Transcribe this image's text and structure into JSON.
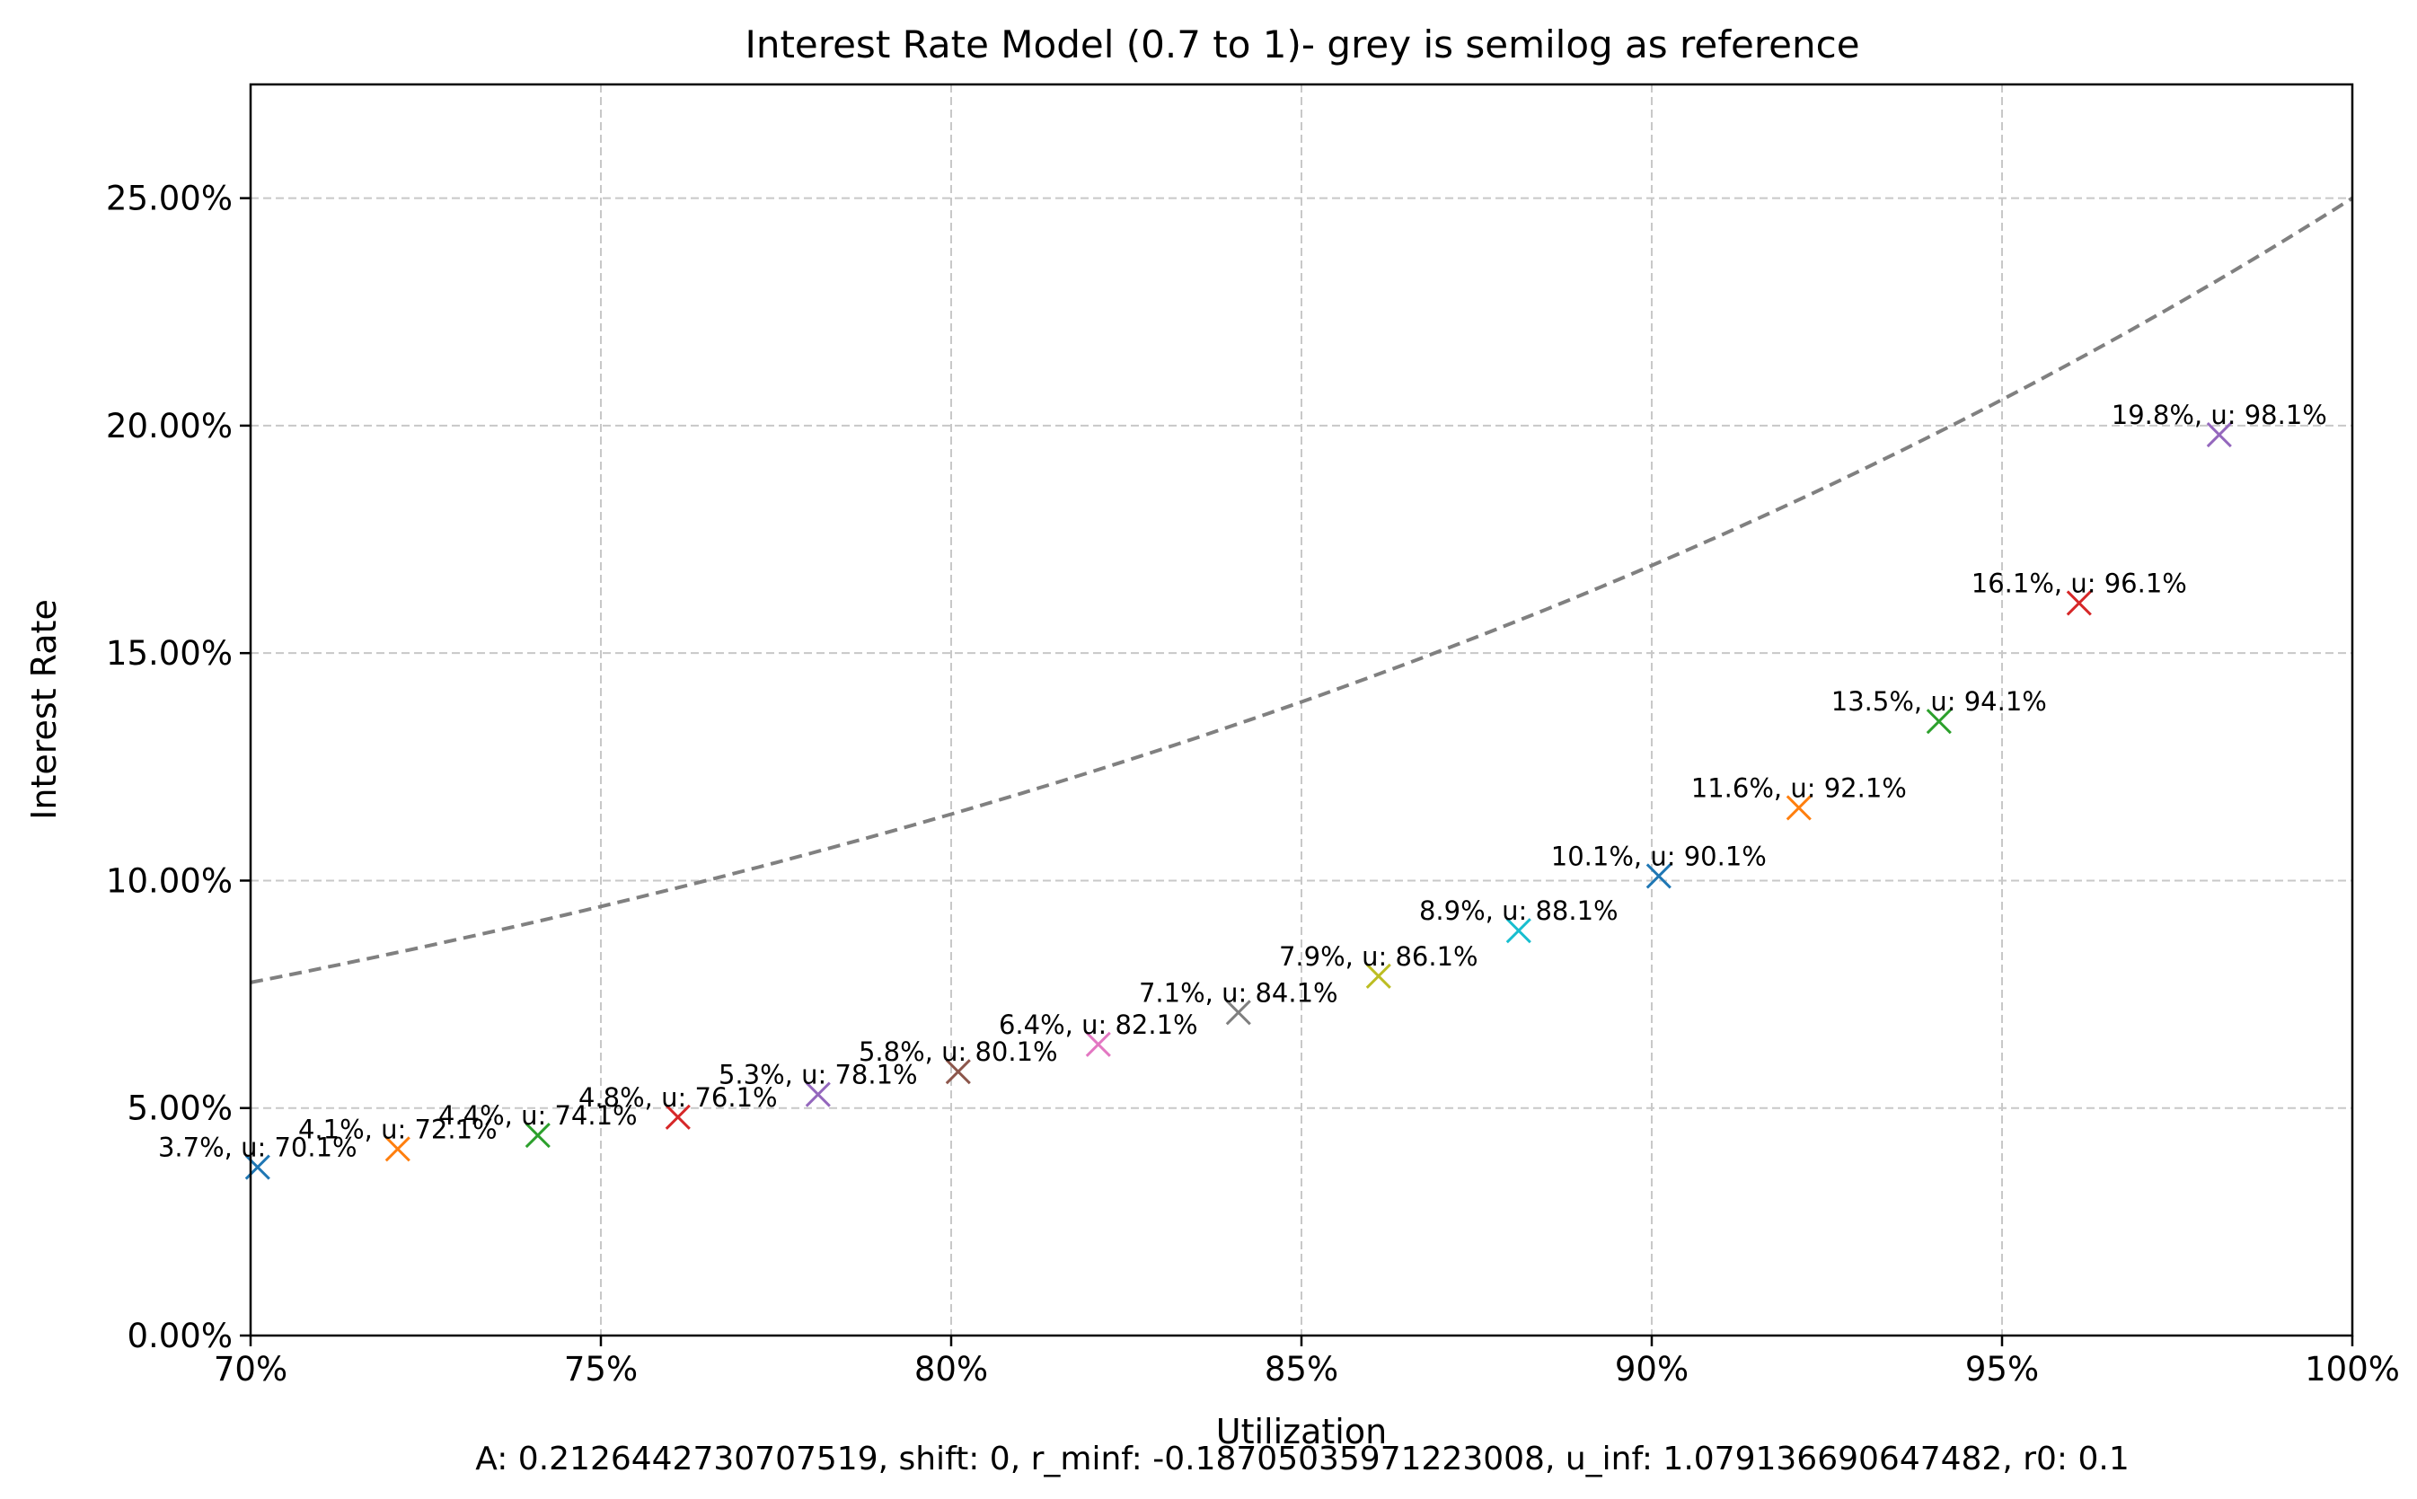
{
  "chart_data": {
    "type": "line",
    "title": "Interest Rate Model (0.7 to 1)- grey is semilog as reference",
    "xlabel": "Utilization",
    "ylabel": "Interest Rate",
    "footer": "A: 0.2126442730707519, shift: 0, r_minf: -0.18705035971223008, u_inf: 1.079136690647482, r0: 0.1",
    "xlim": [
      0.7,
      1.0
    ],
    "ylim": [
      0.0,
      0.275
    ],
    "x_ticks": [
      0.7,
      0.75,
      0.8,
      0.85,
      0.9,
      0.95,
      1.0
    ],
    "x_tick_labels": [
      "70%",
      "75%",
      "80%",
      "85%",
      "90%",
      "95%",
      "100%"
    ],
    "y_ticks": [
      0.0,
      0.05,
      0.1,
      0.15,
      0.2,
      0.25
    ],
    "y_tick_labels": [
      "0.00%",
      "5.00%",
      "10.00%",
      "15.00%",
      "20.00%",
      "25.00%"
    ],
    "grid": true,
    "model": {
      "A": 0.2126442730707519,
      "r_minf": -0.18705035971223008,
      "u_inf": 1.079136690647482
    },
    "series": [
      {
        "kind": "model-curve",
        "color": "#0000ff",
        "style": "solid",
        "x": [
          0.7,
          0.72,
          0.74,
          0.76,
          0.78,
          0.8,
          0.82,
          0.84,
          0.86,
          0.88,
          0.9,
          0.92,
          0.94,
          0.96,
          0.98,
          1.0
        ],
        "y": [
          0.0373,
          0.0405,
          0.0441,
          0.0481,
          0.0526,
          0.0578,
          0.0636,
          0.0704,
          0.0784,
          0.0878,
          0.0991,
          0.113,
          0.1306,
          0.1535,
          0.1847,
          0.25
        ]
      },
      {
        "kind": "semilog-reference",
        "color": "#808080",
        "style": "dashed",
        "x": [
          0.7,
          0.75,
          0.8,
          0.85,
          0.9,
          0.95,
          1.0
        ],
        "y": [
          0.0776,
          0.0938,
          0.1143,
          0.1394,
          0.17,
          0.2061,
          0.25
        ]
      }
    ],
    "points": [
      {
        "x": 0.701,
        "y": 0.037,
        "label": "3.7%, u: 70.1%",
        "color": "#1f77b4"
      },
      {
        "x": 0.721,
        "y": 0.041,
        "label": "4.1%, u: 72.1%",
        "color": "#ff7f0e"
      },
      {
        "x": 0.741,
        "y": 0.044,
        "label": "4.4%, u: 74.1%",
        "color": "#2ca02c"
      },
      {
        "x": 0.761,
        "y": 0.048,
        "label": "4.8%, u: 76.1%",
        "color": "#d62728"
      },
      {
        "x": 0.781,
        "y": 0.053,
        "label": "5.3%, u: 78.1%",
        "color": "#9467bd"
      },
      {
        "x": 0.801,
        "y": 0.058,
        "label": "5.8%, u: 80.1%",
        "color": "#8c564b"
      },
      {
        "x": 0.821,
        "y": 0.064,
        "label": "6.4%, u: 82.1%",
        "color": "#e377c2"
      },
      {
        "x": 0.841,
        "y": 0.071,
        "label": "7.1%, u: 84.1%",
        "color": "#7f7f7f"
      },
      {
        "x": 0.861,
        "y": 0.079,
        "label": "7.9%, u: 86.1%",
        "color": "#bcbd22"
      },
      {
        "x": 0.881,
        "y": 0.089,
        "label": "8.9%, u: 88.1%",
        "color": "#17becf"
      },
      {
        "x": 0.901,
        "y": 0.101,
        "label": "10.1%, u: 90.1%",
        "color": "#1f77b4"
      },
      {
        "x": 0.921,
        "y": 0.116,
        "label": "11.6%, u: 92.1%",
        "color": "#ff7f0e"
      },
      {
        "x": 0.941,
        "y": 0.135,
        "label": "13.5%, u: 94.1%",
        "color": "#2ca02c"
      },
      {
        "x": 0.961,
        "y": 0.161,
        "label": "16.1%, u: 96.1%",
        "color": "#d62728"
      },
      {
        "x": 0.981,
        "y": 0.198,
        "label": "19.8%, u: 98.1%",
        "color": "#9467bd"
      }
    ]
  }
}
